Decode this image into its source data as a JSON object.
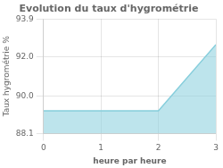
{
  "chart_data": {
    "type": "area",
    "title": "Evolution du taux d'hygrométrie",
    "xlabel": "heure par heure",
    "ylabel": "Taux hygrométrie %",
    "x": [
      0,
      2,
      3
    ],
    "values": [
      89.25,
      89.25,
      92.6
    ],
    "color": "#87cedc",
    "xlim": [
      0,
      3
    ],
    "xticks": [
      0,
      1,
      2,
      3
    ],
    "ylim": [
      88.1,
      93.9
    ],
    "yticks": [
      88.1,
      {
        "value": 90.0,
        "label": "90.0"
      },
      {
        "value": 92.0,
        "label": "92.0"
      },
      93.9
    ],
    "grid": true
  }
}
